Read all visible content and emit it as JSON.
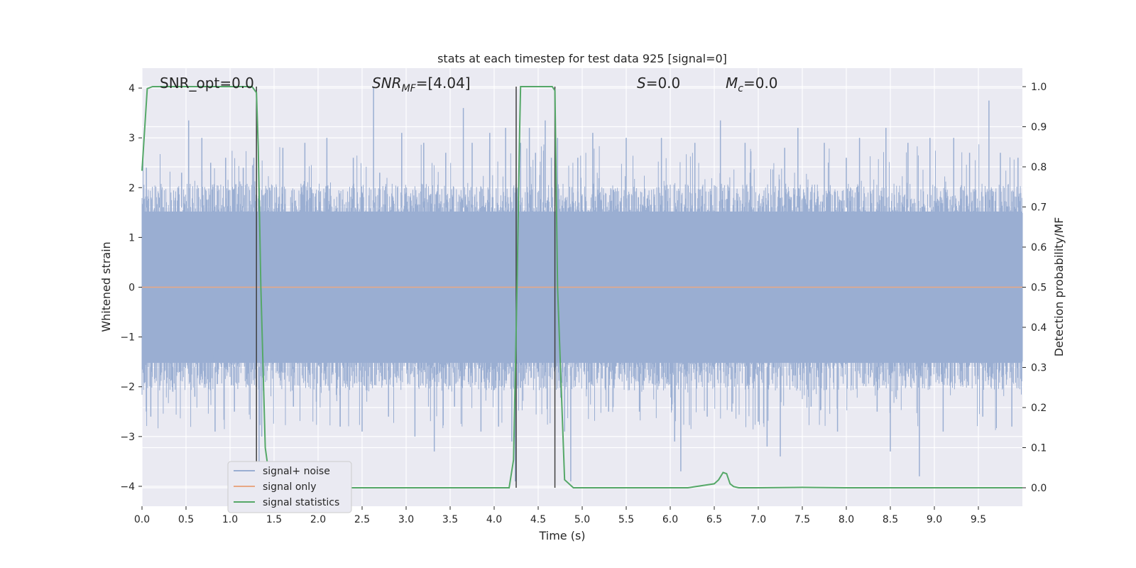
{
  "chart_data": {
    "type": "line",
    "title": "stats at each timestep for test data 925 [signal=0]",
    "xlabel": "Time (s)",
    "ylabel": "Whitened strain",
    "y2label": "Detection probability/MF",
    "xlim": [
      0.0,
      10.0
    ],
    "ylim": [
      -4.4,
      4.4
    ],
    "y2lim": [
      -0.046,
      1.046
    ],
    "x_ticks": [
      "0.0",
      "0.5",
      "1.0",
      "1.5",
      "2.0",
      "2.5",
      "3.0",
      "3.5",
      "4.0",
      "4.5",
      "5.0",
      "5.5",
      "6.0",
      "6.5",
      "7.0",
      "7.5",
      "8.0",
      "8.5",
      "9.0",
      "9.5"
    ],
    "x_tick_values": [
      0.0,
      0.5,
      1.0,
      1.5,
      2.0,
      2.5,
      3.0,
      3.5,
      4.0,
      4.5,
      5.0,
      5.5,
      6.0,
      6.5,
      7.0,
      7.5,
      8.0,
      8.5,
      9.0,
      9.5
    ],
    "y_ticks": [
      "−4",
      "−3",
      "−2",
      "−1",
      "0",
      "1",
      "2",
      "3",
      "4"
    ],
    "y_tick_values": [
      -4,
      -3,
      -2,
      -1,
      0,
      1,
      2,
      3,
      4
    ],
    "y2_ticks": [
      "0.0",
      "0.1",
      "0.2",
      "0.3",
      "0.4",
      "0.5",
      "0.6",
      "0.7",
      "0.8",
      "0.9",
      "1.0"
    ],
    "y2_tick_values": [
      0.0,
      0.1,
      0.2,
      0.3,
      0.4,
      0.5,
      0.6,
      0.7,
      0.8,
      0.9,
      1.0
    ],
    "grid": true,
    "annotations": {
      "snr_opt": "SNR_opt=0.0",
      "snr_mf_base": "SNR",
      "snr_mf_sub": "MF",
      "snr_mf_val": "=[4.04]",
      "s_sym": "S",
      "s_val": "=0.0",
      "mc_base": "M",
      "mc_sub": "c",
      "mc_val": "=0.0"
    },
    "vertical_lines_x": [
      1.3,
      4.25,
      4.69
    ],
    "series": [
      {
        "name": "signal+ noise",
        "color": "#9aaed2",
        "kind": "noise",
        "typical_amplitude": 1.6,
        "spikes": [
          [
            0.05,
            2.4
          ],
          [
            0.1,
            -2.6
          ],
          [
            0.2,
            1.8
          ],
          [
            0.35,
            -2.1
          ],
          [
            0.45,
            2.3
          ],
          [
            0.53,
            3.35
          ],
          [
            0.6,
            -2.2
          ],
          [
            0.68,
            3.0
          ],
          [
            0.78,
            2.5
          ],
          [
            0.83,
            -2.9
          ],
          [
            0.95,
            2.6
          ],
          [
            1.05,
            -2.5
          ],
          [
            1.15,
            2.4
          ],
          [
            1.27,
            2.6
          ],
          [
            1.33,
            -3.8
          ],
          [
            1.36,
            -3.0
          ],
          [
            1.45,
            2.0
          ],
          [
            1.6,
            2.8
          ],
          [
            1.72,
            -2.4
          ],
          [
            1.85,
            2.9
          ],
          [
            1.98,
            -2.3
          ],
          [
            2.1,
            3.0
          ],
          [
            2.25,
            -2.8
          ],
          [
            2.4,
            2.6
          ],
          [
            2.5,
            -2.9
          ],
          [
            2.63,
            4.0
          ],
          [
            2.7,
            2.3
          ],
          [
            2.8,
            -2.6
          ],
          [
            2.95,
            3.1
          ],
          [
            3.1,
            -3.0
          ],
          [
            3.2,
            2.9
          ],
          [
            3.32,
            -3.3
          ],
          [
            3.45,
            2.7
          ],
          [
            3.55,
            -2.4
          ],
          [
            3.65,
            3.6
          ],
          [
            3.75,
            2.9
          ],
          [
            3.85,
            -2.9
          ],
          [
            3.95,
            3.1
          ],
          [
            4.05,
            -2.8
          ],
          [
            4.13,
            3.2
          ],
          [
            4.2,
            -3.1
          ],
          [
            4.24,
            -3.9
          ],
          [
            4.3,
            2.9
          ],
          [
            4.4,
            3.2
          ],
          [
            4.47,
            2.7
          ],
          [
            4.58,
            3.35
          ],
          [
            4.65,
            2.6
          ],
          [
            4.72,
            3.0
          ],
          [
            4.8,
            -2.9
          ],
          [
            4.87,
            -3.9
          ],
          [
            4.95,
            2.6
          ],
          [
            5.12,
            3.1
          ],
          [
            5.3,
            -2.5
          ],
          [
            5.5,
            3.0
          ],
          [
            5.65,
            -2.5
          ],
          [
            5.9,
            3.0
          ],
          [
            6.05,
            -3.1
          ],
          [
            6.12,
            -3.7
          ],
          [
            6.28,
            2.9
          ],
          [
            6.42,
            -2.6
          ],
          [
            6.57,
            3.35
          ],
          [
            6.7,
            -2.5
          ],
          [
            6.85,
            2.9
          ],
          [
            7.0,
            -2.7
          ],
          [
            7.1,
            -3.2
          ],
          [
            7.25,
            -3.4
          ],
          [
            7.3,
            2.8
          ],
          [
            7.45,
            3.2
          ],
          [
            7.6,
            -2.4
          ],
          [
            7.75,
            2.9
          ],
          [
            7.9,
            -2.9
          ],
          [
            8.0,
            2.6
          ],
          [
            8.15,
            3.0
          ],
          [
            8.35,
            -2.5
          ],
          [
            8.45,
            3.2
          ],
          [
            8.5,
            -3.3
          ],
          [
            8.7,
            2.9
          ],
          [
            8.83,
            -3.8
          ],
          [
            8.95,
            3.0
          ],
          [
            9.1,
            -2.9
          ],
          [
            9.22,
            3.0
          ],
          [
            9.4,
            2.7
          ],
          [
            9.55,
            -2.6
          ],
          [
            9.62,
            3.75
          ],
          [
            9.75,
            2.7
          ],
          [
            9.88,
            -2.8
          ],
          [
            9.95,
            2.6
          ]
        ]
      },
      {
        "name": "signal only",
        "color": "#e8a884",
        "kind": "flat",
        "value": 0.0
      },
      {
        "name": "signal statistics",
        "color": "#55a868",
        "axis": "right",
        "x": [
          0.0,
          0.06,
          0.12,
          0.5,
          1.0,
          1.25,
          1.3,
          1.32,
          1.35,
          1.4,
          1.45,
          1.5,
          1.6,
          2.0,
          3.0,
          4.0,
          4.17,
          4.22,
          4.26,
          4.29,
          4.3,
          4.33,
          4.4,
          4.6,
          4.66,
          4.69,
          4.72,
          4.8,
          4.9,
          5.0,
          6.0,
          6.2,
          6.5,
          6.55,
          6.6,
          6.64,
          6.68,
          6.72,
          6.78,
          6.85,
          7.0,
          7.5,
          8.0,
          9.0,
          10.0
        ],
        "y": [
          0.79,
          0.995,
          1.0,
          1.0,
          1.0,
          1.0,
          0.985,
          0.85,
          0.5,
          0.1,
          0.02,
          0.0,
          0.0,
          0.0,
          0.0,
          0.0,
          0.0,
          0.07,
          0.5,
          0.9,
          1.0,
          1.0,
          1.0,
          1.0,
          1.0,
          0.99,
          0.5,
          0.02,
          0.0,
          0.0,
          0.0,
          0.0,
          0.01,
          0.02,
          0.038,
          0.035,
          0.01,
          0.003,
          0.0,
          0.0,
          0.0,
          0.001,
          0.0,
          0.0,
          0.0
        ]
      }
    ],
    "legend": {
      "placement": "lower-left",
      "entries": [
        "signal+ noise",
        "signal only",
        "signal statistics"
      ]
    }
  }
}
